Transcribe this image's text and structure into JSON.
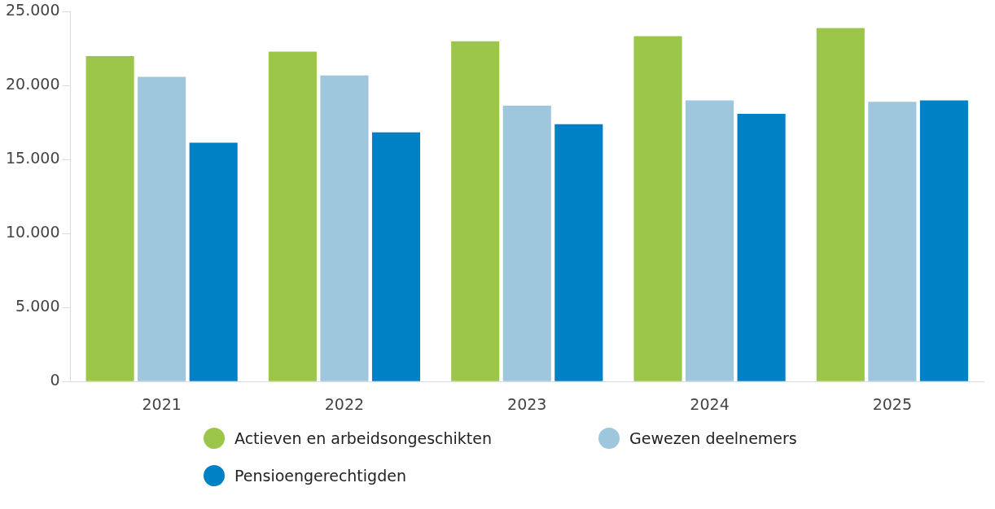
{
  "chart_data": {
    "type": "bar",
    "categories": [
      "2021",
      "2022",
      "2023",
      "2024",
      "2025"
    ],
    "series": [
      {
        "name": "Actieven en arbeidsongeschikten",
        "color": "#9bc64a",
        "values": [
          22000,
          22300,
          23000,
          23350,
          23900
        ]
      },
      {
        "name": "Gewezen deelnemers",
        "color": "#9ec6dc",
        "values": [
          20600,
          20700,
          18650,
          19000,
          18900
        ]
      },
      {
        "name": "Pensioengerechtigden",
        "color": "#0081c6",
        "values": [
          16150,
          16850,
          17400,
          18100,
          19000
        ]
      }
    ],
    "ylim": [
      0,
      25000
    ],
    "yticks": [
      {
        "value": 0,
        "label": "0"
      },
      {
        "value": 5000,
        "label": "5.000"
      },
      {
        "value": 10000,
        "label": "10.000"
      },
      {
        "value": 15000,
        "label": "15.000"
      },
      {
        "value": 20000,
        "label": "20.000"
      },
      {
        "value": 25000,
        "label": "25.000"
      }
    ],
    "grid": false,
    "legend": "bottom"
  }
}
